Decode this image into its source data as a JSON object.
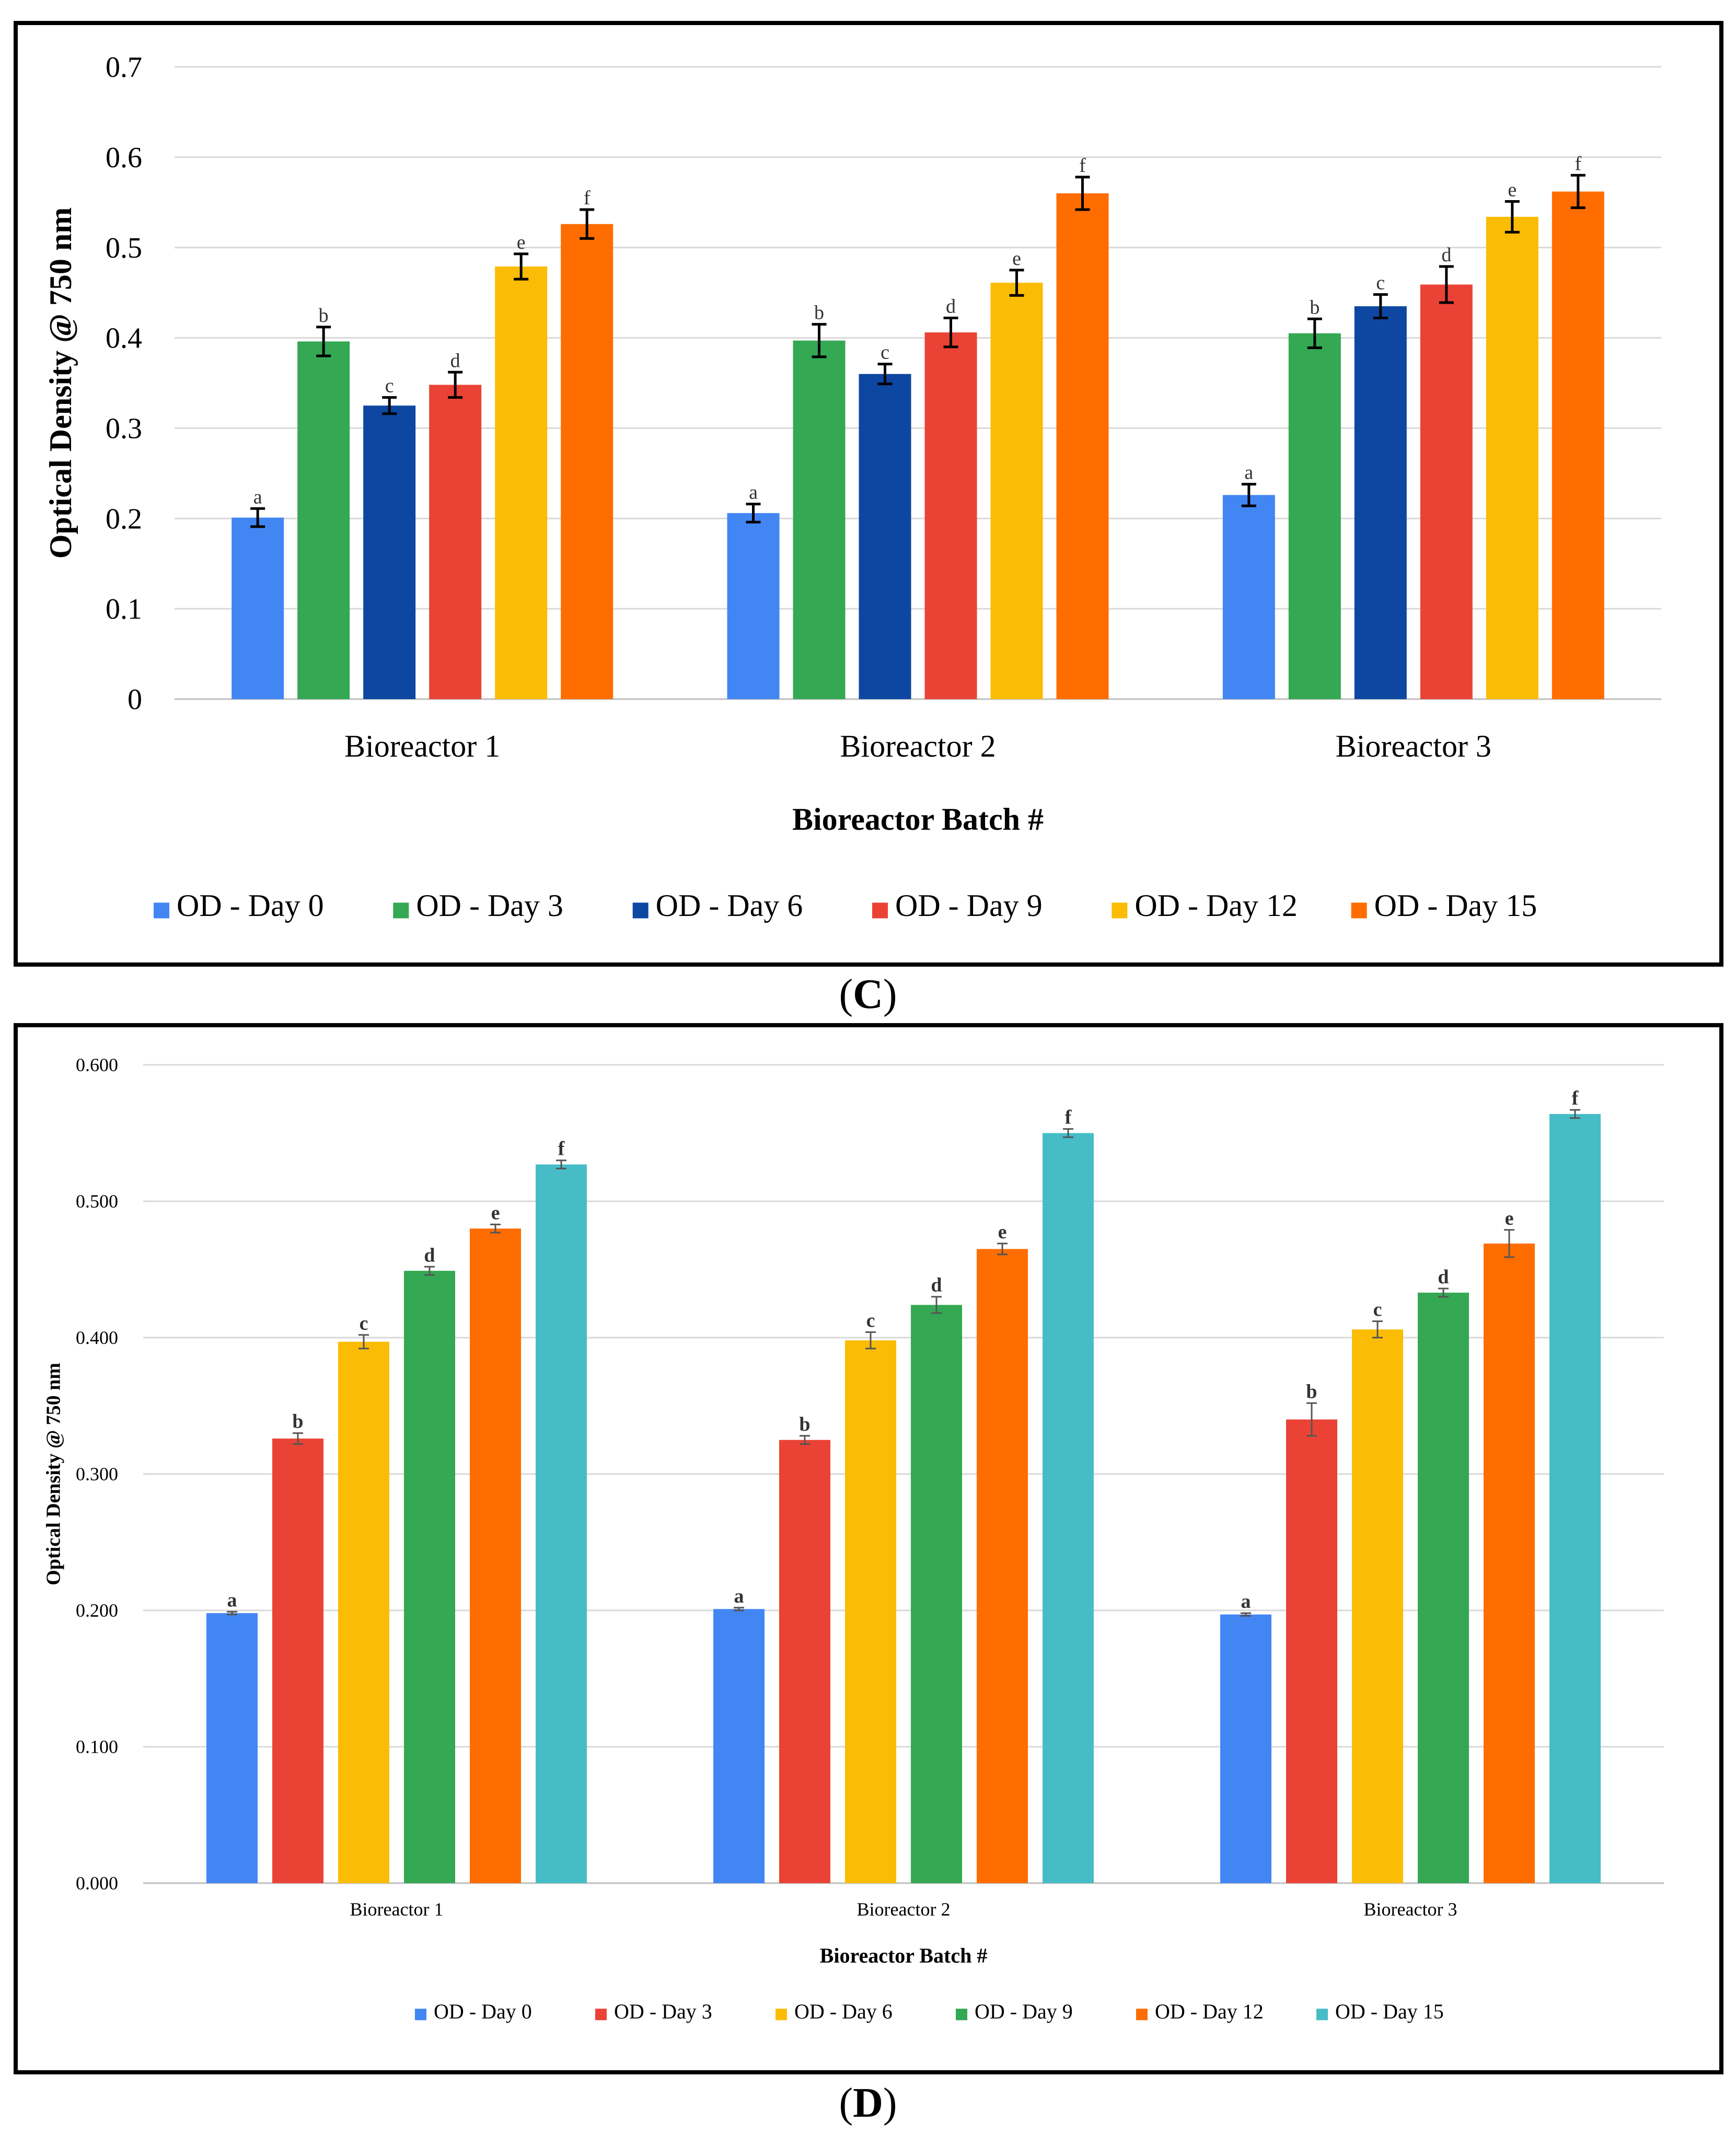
{
  "captions": {
    "c": "C",
    "d": "D"
  },
  "chart_data": [
    {
      "id": "C",
      "type": "bar",
      "title": "",
      "xlabel": "Bioreactor Batch #",
      "ylabel": "Optical Density @ 750  nm",
      "ylim": [
        0,
        0.7
      ],
      "yticks": [
        "0",
        "0.1",
        "0.2",
        "0.3",
        "0.4",
        "0.5",
        "0.6",
        "0.7"
      ],
      "grid": true,
      "legend_position": "bottom",
      "categories": [
        "Bioreactor 1",
        "Bioreactor 2",
        "Bioreactor 3"
      ],
      "series": [
        {
          "name": "OD - Day 0",
          "color": "#4286f4",
          "values": [
            0.201,
            0.206,
            0.226
          ],
          "errors": [
            0.01,
            0.01,
            0.012
          ],
          "labels": [
            "a",
            "a",
            "a"
          ]
        },
        {
          "name": "OD - Day 3",
          "color": "#34a853",
          "values": [
            0.396,
            0.397,
            0.405
          ],
          "errors": [
            0.016,
            0.018,
            0.016
          ],
          "labels": [
            "b",
            "b",
            "b"
          ]
        },
        {
          "name": "OD - Day 6",
          "color": "#0d47a1",
          "values": [
            0.325,
            0.36,
            0.435
          ],
          "errors": [
            0.009,
            0.011,
            0.013
          ],
          "labels": [
            "c",
            "c",
            "c"
          ]
        },
        {
          "name": "OD - Day 9",
          "color": "#ea4335",
          "values": [
            0.348,
            0.406,
            0.459
          ],
          "errors": [
            0.014,
            0.016,
            0.02
          ],
          "labels": [
            "d",
            "d",
            "d"
          ]
        },
        {
          "name": "OD - Day 12",
          "color": "#fbbc05",
          "values": [
            0.479,
            0.461,
            0.534
          ],
          "errors": [
            0.014,
            0.014,
            0.017
          ],
          "labels": [
            "e",
            "e",
            "e"
          ]
        },
        {
          "name": "OD - Day 15",
          "color": "#ff6d01",
          "values": [
            0.526,
            0.56,
            0.562
          ],
          "errors": [
            0.016,
            0.018,
            0.018
          ],
          "labels": [
            "f",
            "f",
            "f"
          ]
        }
      ]
    },
    {
      "id": "D",
      "type": "bar",
      "title": "",
      "xlabel": "Bioreactor Batch #",
      "ylabel": "Optical Density  @ 750 nm",
      "ylim": [
        0,
        0.6
      ],
      "yticks": [
        "0.000",
        "0.100",
        "0.200",
        "0.300",
        "0.400",
        "0.500",
        "0.600"
      ],
      "grid": true,
      "legend_position": "bottom",
      "categories": [
        "Bioreactor 1",
        "Bioreactor 2",
        "Bioreactor 3"
      ],
      "series": [
        {
          "name": "OD - Day 0",
          "color": "#4286f4",
          "values": [
            0.198,
            0.201,
            0.197
          ],
          "errors": [
            0.001,
            0.001,
            0.001
          ],
          "labels": [
            "a",
            "a",
            "a"
          ]
        },
        {
          "name": "OD - Day 3",
          "color": "#ea4335",
          "values": [
            0.326,
            0.325,
            0.34
          ],
          "errors": [
            0.004,
            0.003,
            0.012
          ],
          "labels": [
            "b",
            "b",
            "b"
          ]
        },
        {
          "name": "OD - Day 6",
          "color": "#fbbc05",
          "values": [
            0.397,
            0.398,
            0.406
          ],
          "errors": [
            0.005,
            0.006,
            0.006
          ],
          "labels": [
            "c",
            "c",
            "c"
          ]
        },
        {
          "name": "OD - Day 9",
          "color": "#34a853",
          "values": [
            0.449,
            0.424,
            0.433
          ],
          "errors": [
            0.003,
            0.006,
            0.003
          ],
          "labels": [
            "d",
            "d",
            "d"
          ]
        },
        {
          "name": "OD - Day 12",
          "color": "#ff6d01",
          "values": [
            0.48,
            0.465,
            0.469
          ],
          "errors": [
            0.003,
            0.004,
            0.01
          ],
          "labels": [
            "e",
            "e",
            "e"
          ]
        },
        {
          "name": "OD - Day 15",
          "color": "#46bdc6",
          "values": [
            0.527,
            0.55,
            0.564
          ],
          "errors": [
            0.003,
            0.003,
            0.003
          ],
          "labels": [
            "f",
            "f",
            "f"
          ]
        }
      ]
    }
  ]
}
